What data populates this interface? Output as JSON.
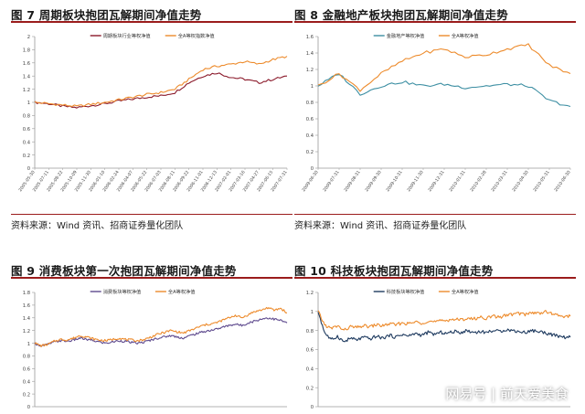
{
  "chart_data": [
    {
      "type": "line",
      "title": "图 7 周期板块抱团瓦解期间净值走势",
      "source": "资料来源：Wind 资讯、招商证券量化团队",
      "x": [
        "2005-05-30",
        "2005-07-11",
        "2005-08-22",
        "2005-10-09",
        "2005-11-30",
        "2006-01-10",
        "2006-02-24",
        "2006-04-07",
        "2006-05-22",
        "2006-07-03",
        "2006-08-11",
        "2006-09-22",
        "2006-11-01",
        "2006-12-13",
        "2007-02-01",
        "2007-03-16",
        "2007-04-27",
        "2007-06-15",
        "2007-07-31"
      ],
      "ylim": [
        0,
        2
      ],
      "yticks": [
        0,
        0.2,
        0.4,
        0.6,
        0.8,
        1,
        1.2,
        1.4,
        1.6,
        1.8,
        2
      ],
      "legend_position": "top",
      "series": [
        {
          "name": "周期板块行业等权净值",
          "color": "#8b1a2b",
          "values": [
            1.0,
            0.98,
            0.94,
            0.92,
            0.95,
            0.98,
            1.02,
            1.05,
            1.08,
            1.1,
            1.15,
            1.3,
            1.4,
            1.45,
            1.38,
            1.35,
            1.3,
            1.35,
            1.4
          ]
        },
        {
          "name": "全A等权指数净值",
          "color": "#ed8b2c",
          "values": [
            1.0,
            0.98,
            0.96,
            0.94,
            0.97,
            1.0,
            1.04,
            1.08,
            1.12,
            1.15,
            1.2,
            1.35,
            1.5,
            1.55,
            1.58,
            1.62,
            1.58,
            1.65,
            1.7
          ]
        }
      ]
    },
    {
      "type": "line",
      "title": "图 8 金融地产板块抱团瓦解期间净值走势",
      "source": "资料来源：Wind 资讯、招商证券量化团队",
      "x": [
        "2009-06-30",
        "2009-07-31",
        "2009-08-31",
        "2009-09-30",
        "2009-10-31",
        "2009-11-30",
        "2009-12-31",
        "2010-01-31",
        "2010-02-28",
        "2010-03-31",
        "2010-04-30",
        "2010-05-31",
        "2010-06-30"
      ],
      "ylim": [
        0,
        1.6
      ],
      "yticks": [
        0,
        0.2,
        0.4,
        0.6,
        0.8,
        1,
        1.2,
        1.4,
        1.6
      ],
      "legend_position": "top",
      "series": [
        {
          "name": "金融地产等权净值",
          "color": "#3d8fa3",
          "values": [
            1.0,
            1.15,
            0.9,
            1.0,
            1.05,
            1.0,
            1.02,
            0.98,
            1.0,
            1.02,
            1.0,
            0.82,
            0.75
          ]
        },
        {
          "name": "全A等权净值",
          "color": "#ed8b2c",
          "values": [
            1.0,
            1.15,
            0.95,
            1.15,
            1.3,
            1.4,
            1.45,
            1.35,
            1.38,
            1.45,
            1.5,
            1.25,
            1.15
          ]
        }
      ]
    },
    {
      "type": "line",
      "title": "图 9 消费板块第一次抱团瓦解期间净值走势",
      "x_count": 40,
      "ylim": [
        0,
        1.8
      ],
      "yticks": [
        0,
        0.2,
        0.4,
        0.6,
        0.8,
        1,
        1.2,
        1.4,
        1.6,
        1.8
      ],
      "legend_position": "top",
      "series": [
        {
          "name": "消费板块等权净值",
          "color": "#5e4a8e",
          "values": [
            1.0,
            0.96,
            0.98,
            1.02,
            1.04,
            1.03,
            1.05,
            1.08,
            1.06,
            1.04,
            1.02,
            1.0,
            1.02,
            1.04,
            1.03,
            1.01,
            1.0,
            1.02,
            1.05,
            1.08,
            1.1,
            1.12,
            1.1,
            1.08,
            1.12,
            1.15,
            1.18,
            1.2,
            1.22,
            1.25,
            1.28,
            1.3,
            1.28,
            1.32,
            1.35,
            1.38,
            1.4,
            1.38,
            1.36,
            1.32
          ]
        },
        {
          "name": "全A等权净值",
          "color": "#ed8b2c",
          "values": [
            1.0,
            0.96,
            0.98,
            1.03,
            1.06,
            1.05,
            1.08,
            1.12,
            1.1,
            1.07,
            1.05,
            1.04,
            1.06,
            1.08,
            1.06,
            1.05,
            1.04,
            1.06,
            1.1,
            1.14,
            1.17,
            1.2,
            1.18,
            1.16,
            1.2,
            1.24,
            1.28,
            1.3,
            1.32,
            1.36,
            1.4,
            1.44,
            1.4,
            1.45,
            1.5,
            1.52,
            1.56,
            1.52,
            1.55,
            1.48
          ]
        }
      ]
    },
    {
      "type": "line",
      "title": "图 10 科技板块抱团瓦解期间净值走势",
      "x_count": 40,
      "ylim": [
        0,
        1.2
      ],
      "yticks": [
        0,
        0.2,
        0.4,
        0.6,
        0.8,
        1,
        1.2
      ],
      "legend_position": "top",
      "series": [
        {
          "name": "科技板块等权净值",
          "color": "#1e3a5f",
          "values": [
            1.0,
            0.78,
            0.7,
            0.74,
            0.68,
            0.72,
            0.7,
            0.73,
            0.71,
            0.74,
            0.72,
            0.75,
            0.73,
            0.76,
            0.74,
            0.77,
            0.75,
            0.78,
            0.76,
            0.78,
            0.77,
            0.79,
            0.78,
            0.8,
            0.78,
            0.79,
            0.78,
            0.8,
            0.79,
            0.81,
            0.8,
            0.79,
            0.78,
            0.8,
            0.79,
            0.78,
            0.76,
            0.74,
            0.73,
            0.73
          ]
        },
        {
          "name": "全A等权净值",
          "color": "#ed8b2c",
          "values": [
            1.0,
            0.86,
            0.82,
            0.85,
            0.8,
            0.84,
            0.83,
            0.85,
            0.84,
            0.86,
            0.85,
            0.87,
            0.86,
            0.88,
            0.87,
            0.89,
            0.88,
            0.9,
            0.89,
            0.9,
            0.91,
            0.92,
            0.91,
            0.93,
            0.92,
            0.94,
            0.93,
            0.95,
            0.94,
            0.96,
            0.97,
            0.98,
            0.97,
            0.99,
            0.98,
            1.0,
            0.98,
            0.96,
            0.95,
            0.95
          ]
        }
      ]
    }
  ],
  "watermark": "网易号 | 前天爱美食"
}
